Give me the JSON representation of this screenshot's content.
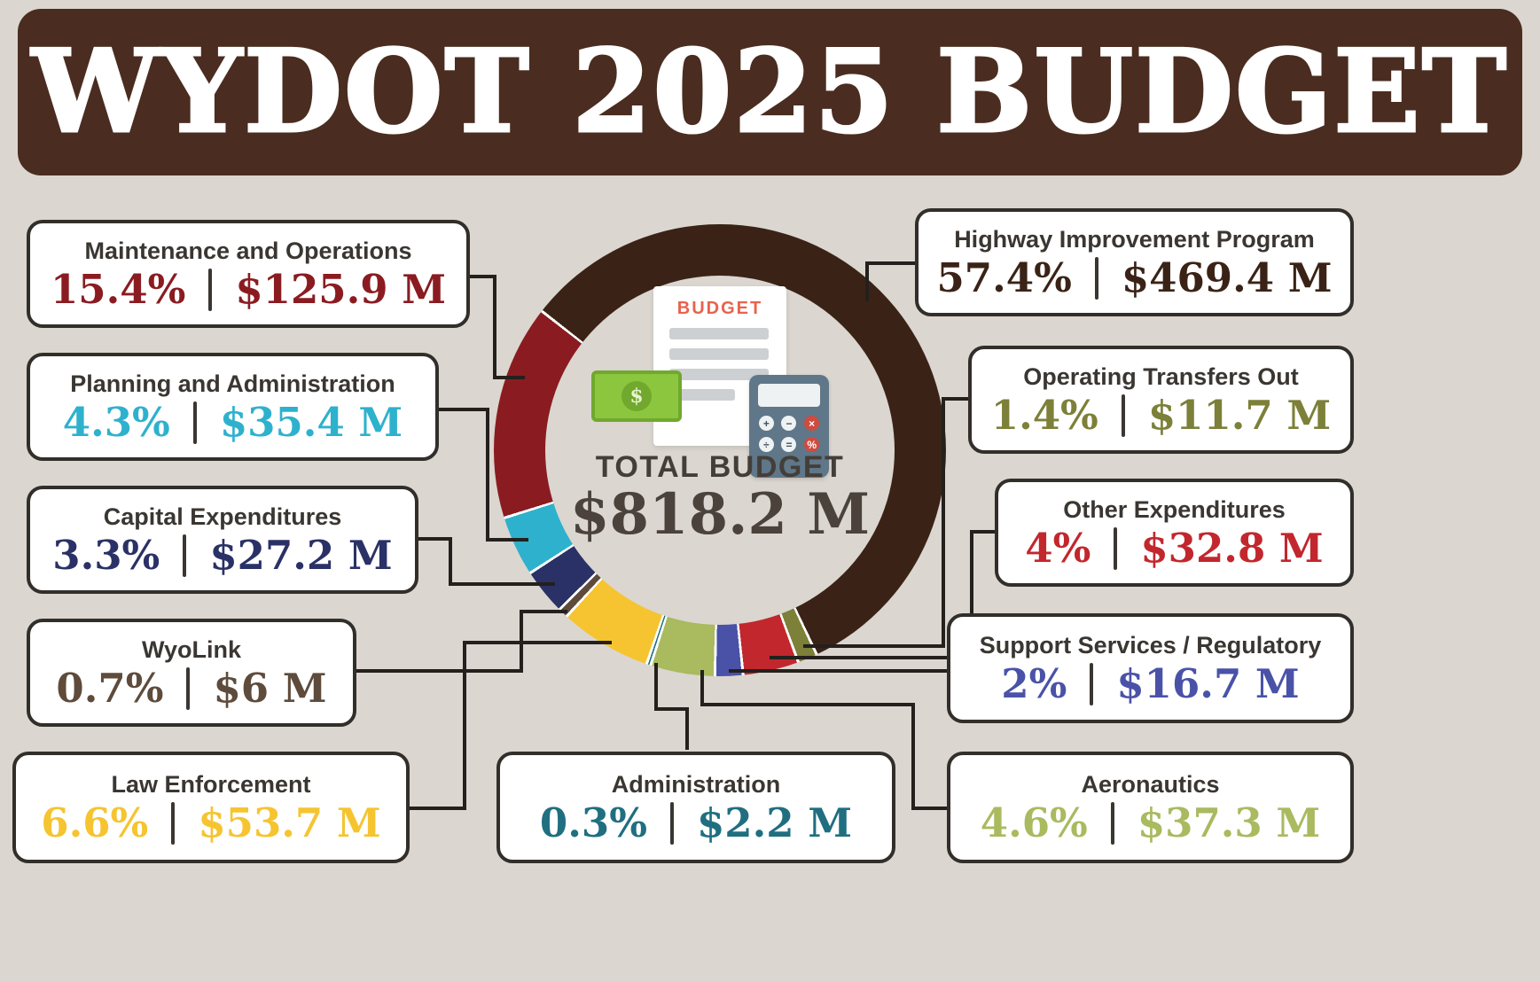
{
  "page": {
    "title": "WYDOT 2025 BUDGET",
    "background": "#dbd6d0",
    "banner_color": "#4a2d20",
    "box_border_color": "#322e2a",
    "title_text_color": "#3a3632"
  },
  "center": {
    "total_label": "TOTAL BUDGET",
    "total_value": "$818.2 M",
    "icon": {
      "doc_label": "BUDGET",
      "bill_symbol": "$",
      "calculator_buttons": [
        "+",
        "−",
        "×",
        "÷",
        "=",
        "%"
      ]
    }
  },
  "chart_data": {
    "type": "pie",
    "donut": true,
    "title": "WYDOT 2025 BUDGET",
    "total_label": "TOTAL BUDGET",
    "total_value_text": "$818.2 M",
    "total_millions": 818.2,
    "units": "USD millions",
    "legend_position": "callout boxes around donut",
    "start_angle_deg": 308,
    "direction": "clockwise",
    "segments": [
      {
        "id": "highway",
        "label": "Highway Improvement Program",
        "percent": 57.4,
        "percent_text": "57.4%",
        "amount_millions": 469.4,
        "amount_text": "$469.4 M",
        "color": "#3a2316"
      },
      {
        "id": "operating",
        "label": "Operating Transfers Out",
        "percent": 1.4,
        "percent_text": "1.4%",
        "amount_millions": 11.7,
        "amount_text": "$11.7 M",
        "color": "#7c8038"
      },
      {
        "id": "other",
        "label": "Other Expenditures",
        "percent": 4,
        "percent_text": "4%",
        "amount_millions": 32.8,
        "amount_text": "$32.8 M",
        "color": "#c2272d"
      },
      {
        "id": "support",
        "label": "Support Services / Regulatory",
        "percent": 2,
        "percent_text": "2%",
        "amount_millions": 16.7,
        "amount_text": "$16.7 M",
        "color": "#4a52a8"
      },
      {
        "id": "aeronautics",
        "label": "Aeronautics",
        "percent": 4.6,
        "percent_text": "4.6%",
        "amount_millions": 37.3,
        "amount_text": "$37.3 M",
        "color": "#a9ba5f"
      },
      {
        "id": "administration",
        "label": "Administration",
        "percent": 0.3,
        "percent_text": "0.3%",
        "amount_millions": 2.2,
        "amount_text": "$2.2 M",
        "color": "#1f6f80"
      },
      {
        "id": "law",
        "label": "Law Enforcement",
        "percent": 6.6,
        "percent_text": "6.6%",
        "amount_millions": 53.7,
        "amount_text": "$53.7 M",
        "color": "#f5c430"
      },
      {
        "id": "wyolink",
        "label": "WyoLink",
        "percent": 0.7,
        "percent_text": "0.7%",
        "amount_millions": 6,
        "amount_text": "$6 M",
        "color": "#5e4b3b"
      },
      {
        "id": "capital",
        "label": "Capital Expenditures",
        "percent": 3.3,
        "percent_text": "3.3%",
        "amount_millions": 27.2,
        "amount_text": "$27.2 M",
        "color": "#2a3166"
      },
      {
        "id": "planning",
        "label": "Planning and Administration",
        "percent": 4.3,
        "percent_text": "4.3%",
        "amount_millions": 35.4,
        "amount_text": "$35.4 M",
        "color": "#2eb1cd"
      },
      {
        "id": "maintenance",
        "label": "Maintenance and Operations",
        "percent": 15.4,
        "percent_text": "15.4%",
        "amount_millions": 125.9,
        "amount_text": "$125.9 M",
        "color": "#8a1c21"
      }
    ]
  }
}
